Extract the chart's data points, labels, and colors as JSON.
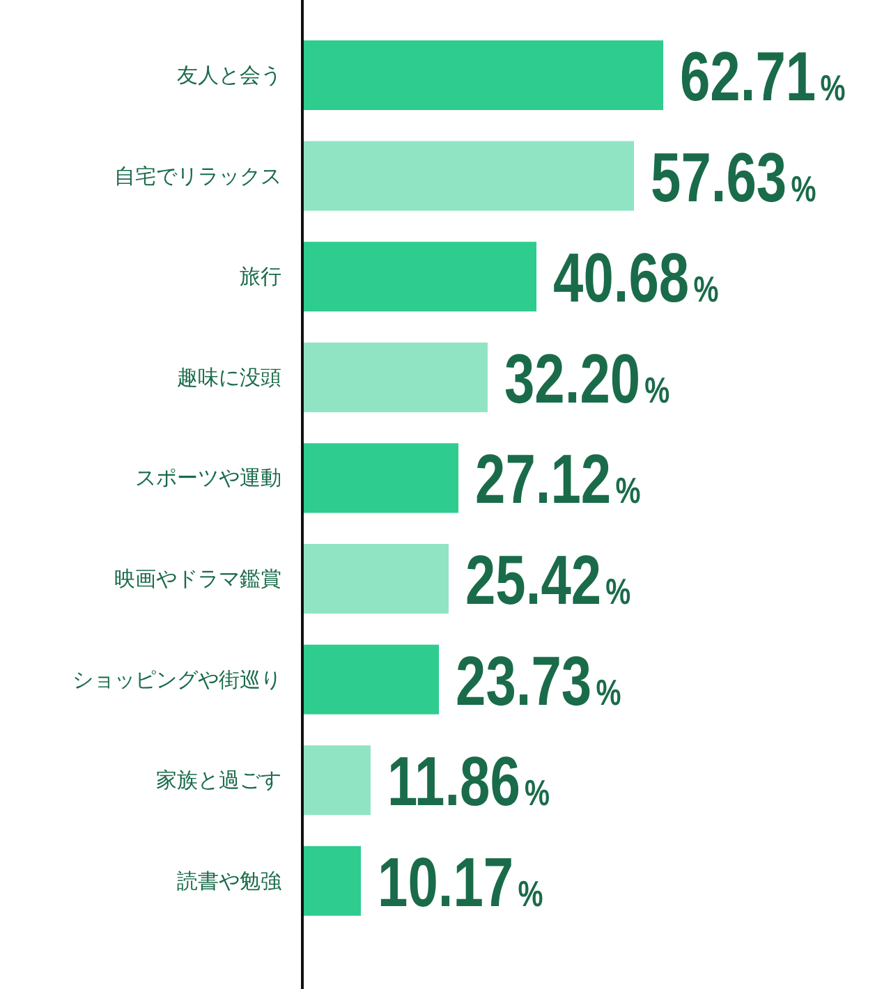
{
  "chart_data": {
    "type": "bar",
    "orientation": "horizontal",
    "relative": false,
    "categories": [
      "友人と会う",
      "自宅でリラックス",
      "旅行",
      "趣味に没頭",
      "スポーツや運動",
      "映画やドラマ鑑賞",
      "ショッピングや街巡り",
      "家族と過ごす",
      "読書や勉強"
    ],
    "values": [
      62.71,
      57.63,
      40.68,
      32.2,
      27.12,
      25.42,
      23.73,
      11.86,
      10.17
    ],
    "colors": [
      "#2ecc8e",
      "#90e4c4",
      "#2ecc8e",
      "#90e4c4",
      "#2ecc8e",
      "#90e4c4",
      "#2ecc8e",
      "#90e4c4",
      "#2ecc8e"
    ],
    "value_labels": [
      "62.71%",
      "57.63%",
      "40.68%",
      "32.20%",
      "27.12%",
      "25.42%",
      "23.73%",
      "11.86%",
      "10.17%"
    ]
  }
}
